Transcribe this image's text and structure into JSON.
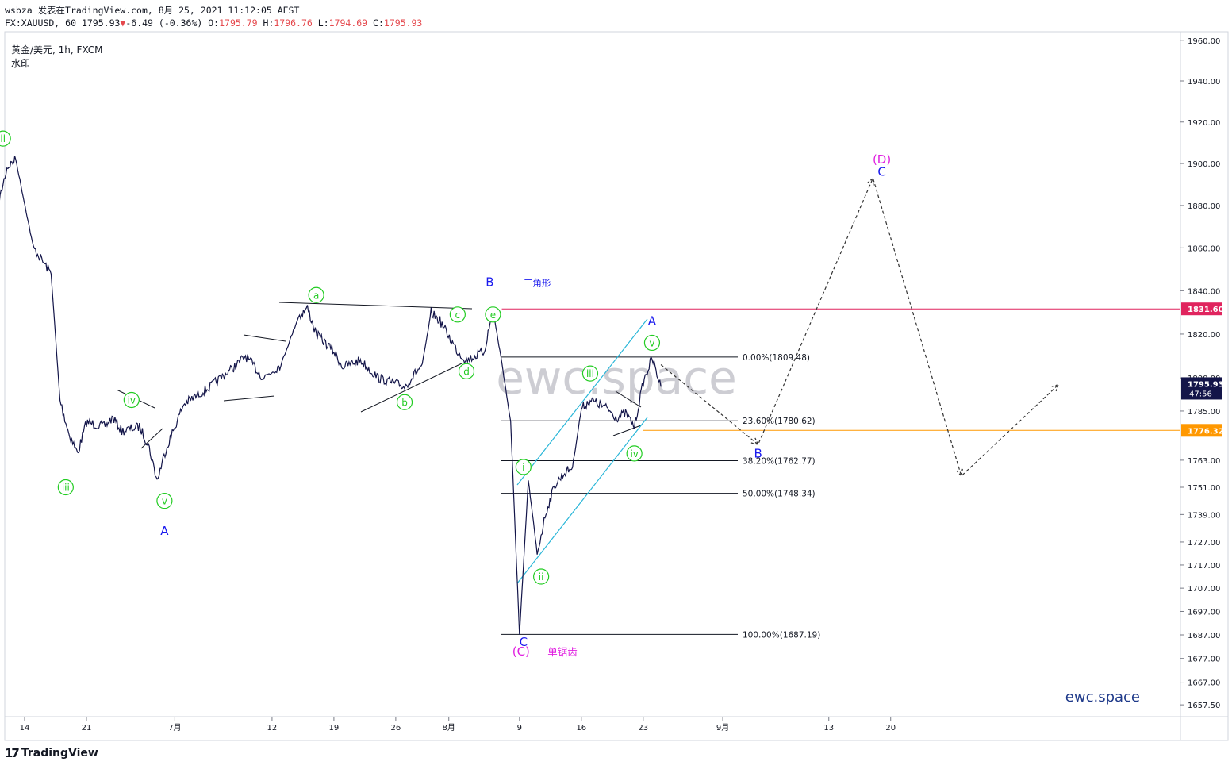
{
  "header": {
    "line1": "wsbza 发表在TradingView.com, 8月 25, 2021 11:12:05 AEST",
    "symbol_interval": "FX:XAUUSD, 60",
    "last": "1795.93",
    "change_arrow": "▼",
    "change": "-6.49 (-0.36%)",
    "o_label": "O:",
    "o": "1795.79",
    "h_label": "H:",
    "h": "1796.76",
    "l_label": "L:",
    "l": "1794.69",
    "c_label": "C:",
    "c": "1795.93"
  },
  "instrument": {
    "title": "黄金/美元, 1h, FXCM",
    "watermark_label": "水印"
  },
  "watermark_center": "ewc.space",
  "brand_text": "ewc.space",
  "footer": {
    "logo_text": "TradingView",
    "logo_mark": "17"
  },
  "colors": {
    "price": "#131549",
    "wave_green": "#22cc22",
    "wave_blue": "#1a1aee",
    "wave_magenta": "#e020e0",
    "channel": "#29b6d8",
    "resistance": "#e0245e",
    "support": "#ff9800"
  },
  "chart_data": {
    "type": "line",
    "symbol": "XAUUSD",
    "timeframe": "1h",
    "x_ticks": [
      "14",
      "21",
      "7月",
      "12",
      "19",
      "26",
      "8月",
      "9",
      "16",
      "23",
      "9月",
      "13",
      "20"
    ],
    "y_ticks": [
      "1960.00",
      "1940.00",
      "1920.00",
      "1900.00",
      "1880.00",
      "1860.00",
      "1840.00",
      "1820.00",
      "1800.00",
      "1785.00",
      "1763.00",
      "1751.00",
      "1739.00",
      "1727.00",
      "1717.00",
      "1707.00",
      "1697.00",
      "1687.00",
      "1677.00",
      "1667.00",
      "1657.50"
    ],
    "ylim": [
      1650,
      1965
    ],
    "y_scale": "log",
    "price_path": [
      {
        "x": "6月11",
        "y": 1880
      },
      {
        "x": "6月12",
        "y": 1898
      },
      {
        "x": "6月13",
        "y": 1902
      },
      {
        "x": "6月15",
        "y": 1860
      },
      {
        "x": "6月17",
        "y": 1848
      },
      {
        "x": "6月18",
        "y": 1790
      },
      {
        "x": "6月19",
        "y": 1775
      },
      {
        "x": "6月20",
        "y": 1766
      },
      {
        "x": "6月21",
        "y": 1780
      },
      {
        "x": "6月23",
        "y": 1778
      },
      {
        "x": "6月24",
        "y": 1782
      },
      {
        "x": "6月25",
        "y": 1776
      },
      {
        "x": "6月27",
        "y": 1778
      },
      {
        "x": "6月28",
        "y": 1770
      },
      {
        "x": "6月29",
        "y": 1754
      },
      {
        "x": "6月30",
        "y": 1768
      },
      {
        "x": "7月2",
        "y": 1788
      },
      {
        "x": "7月5",
        "y": 1796
      },
      {
        "x": "7月8",
        "y": 1806
      },
      {
        "x": "7月9",
        "y": 1810
      },
      {
        "x": "7月11",
        "y": 1800
      },
      {
        "x": "7月13",
        "y": 1806
      },
      {
        "x": "7月15",
        "y": 1828
      },
      {
        "x": "7月16",
        "y": 1832
      },
      {
        "x": "7月17",
        "y": 1820
      },
      {
        "x": "7月19",
        "y": 1812
      },
      {
        "x": "7月20",
        "y": 1805
      },
      {
        "x": "7月22",
        "y": 1808
      },
      {
        "x": "7月24",
        "y": 1800
      },
      {
        "x": "7月27",
        "y": 1796
      },
      {
        "x": "7月29",
        "y": 1806
      },
      {
        "x": "7月30",
        "y": 1830
      },
      {
        "x": "7月31",
        "y": 1826
      },
      {
        "x": "8月2",
        "y": 1812
      },
      {
        "x": "8月3",
        "y": 1808
      },
      {
        "x": "8月5",
        "y": 1812
      },
      {
        "x": "8月6",
        "y": 1831
      },
      {
        "x": "8月7",
        "y": 1807
      },
      {
        "x": "8月8",
        "y": 1780
      },
      {
        "x": "8月9",
        "y": 1687
      },
      {
        "x": "8月10",
        "y": 1754
      },
      {
        "x": "8月11",
        "y": 1722
      },
      {
        "x": "8月12",
        "y": 1740
      },
      {
        "x": "8月13",
        "y": 1752
      },
      {
        "x": "8月14",
        "y": 1757
      },
      {
        "x": "8月15",
        "y": 1760
      },
      {
        "x": "8月16",
        "y": 1786
      },
      {
        "x": "8月17",
        "y": 1790
      },
      {
        "x": "8月18",
        "y": 1788
      },
      {
        "x": "8月19",
        "y": 1786
      },
      {
        "x": "8月20",
        "y": 1782
      },
      {
        "x": "8月21",
        "y": 1784
      },
      {
        "x": "8月22",
        "y": 1778
      },
      {
        "x": "8月23",
        "y": 1798
      },
      {
        "x": "8月24",
        "y": 1809
      },
      {
        "x": "8月25",
        "y": 1796
      }
    ],
    "projection_path": [
      {
        "x": "8月25",
        "y": 1806
      },
      {
        "x": "9月5",
        "y": 1770
      },
      {
        "x": "9月18",
        "y": 1893
      },
      {
        "x": "9月28",
        "y": 1756
      },
      {
        "x": "10月9",
        "y": 1797
      }
    ],
    "horizontal_lines": [
      {
        "value": 1831.6,
        "label": "1831.60"
      },
      {
        "value": 1776.32,
        "label": "1776.32"
      }
    ],
    "last_price_label": {
      "value": "1795.93",
      "countdown": "47:56"
    },
    "fibonacci": [
      {
        "ratio": "0.00%",
        "value": 1809.48,
        "label": "0.00%(1809.48)"
      },
      {
        "ratio": "23.60%",
        "value": 1780.62,
        "label": "23.60%(1780.62)"
      },
      {
        "ratio": "38.20%",
        "value": 1762.77,
        "label": "38.20%(1762.77)"
      },
      {
        "ratio": "50.00%",
        "value": 1748.34,
        "label": "50.00%(1748.34)"
      },
      {
        "ratio": "100.00%",
        "value": 1687.19,
        "label": "100.00%(1687.19)"
      }
    ],
    "wave_labels": [
      {
        "text": "ii",
        "style": "green"
      },
      {
        "text": "iii",
        "style": "green"
      },
      {
        "text": "iv",
        "style": "green"
      },
      {
        "text": "v",
        "style": "green"
      },
      {
        "text": "A",
        "style": "blue"
      },
      {
        "text": "a",
        "style": "green"
      },
      {
        "text": "b",
        "style": "green"
      },
      {
        "text": "c",
        "style": "green"
      },
      {
        "text": "d",
        "style": "green"
      },
      {
        "text": "e",
        "style": "green"
      },
      {
        "text": "B",
        "style": "blue"
      },
      {
        "text": "三角形",
        "style": "blue-small"
      },
      {
        "text": "C",
        "style": "blue"
      },
      {
        "text": "(C)",
        "style": "magenta"
      },
      {
        "text": "单锯齿",
        "style": "magenta-small"
      },
      {
        "text": "i",
        "style": "green"
      },
      {
        "text": "ii",
        "style": "green"
      },
      {
        "text": "iii",
        "style": "green"
      },
      {
        "text": "iv",
        "style": "green"
      },
      {
        "text": "v",
        "style": "green"
      },
      {
        "text": "A",
        "style": "blue"
      },
      {
        "text": "B",
        "style": "blue"
      },
      {
        "text": "C",
        "style": "blue"
      },
      {
        "text": "(D)",
        "style": "magenta"
      }
    ]
  }
}
